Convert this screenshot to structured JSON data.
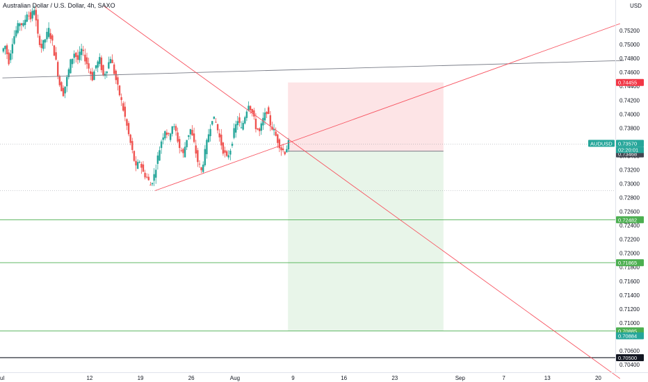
{
  "chart_data": {
    "type": "candlestick",
    "title": "Australian Dollar / U.S. Dollar, 4h, SAXO",
    "currency": "USD",
    "ylim": [
      0.703,
      0.756
    ],
    "y_ticks": [
      "0.75200",
      "0.75000",
      "0.74800",
      "0.74600",
      "0.74400",
      "0.74200",
      "0.74000",
      "0.73800",
      "0.73600",
      "0.73400",
      "0.73200",
      "0.73000",
      "0.72800",
      "0.72600",
      "0.72400",
      "0.72200",
      "0.72000",
      "0.71800",
      "0.71600",
      "0.71400",
      "0.71200",
      "0.71000",
      "0.70800",
      "0.70600",
      "0.70400"
    ],
    "x_ticks": [
      {
        "label": "ul",
        "day": 0
      },
      {
        "label": "12",
        "day": 12
      },
      {
        "label": "19",
        "day": 19
      },
      {
        "label": "26",
        "day": 26
      },
      {
        "label": "Aug",
        "day": 32
      },
      {
        "label": "9",
        "day": 40
      },
      {
        "label": "16",
        "day": 47
      },
      {
        "label": "23",
        "day": 54
      },
      {
        "label": "Sep",
        "day": 63
      },
      {
        "label": "7",
        "day": 69
      },
      {
        "label": "13",
        "day": 75
      },
      {
        "label": "20",
        "day": 82
      }
    ],
    "horizontal_levels": [
      {
        "price": 0.72482,
        "label": "0.72482",
        "color": "#4caf50"
      },
      {
        "price": 0.71865,
        "label": "0.71865",
        "color": "#4caf50"
      },
      {
        "price": 0.70885,
        "label": "0.70885",
        "color": "#4caf50"
      },
      {
        "price": 0.705,
        "label": "0.70500",
        "color": "#131722"
      }
    ],
    "price_tags": [
      {
        "price": 0.74455,
        "label": "0.74455",
        "color": "#f23645"
      },
      {
        "price": 0.7357,
        "label": "0.73570",
        "color": "#26a69a"
      },
      {
        "price": 0.73468,
        "label": "0.73468",
        "color": "#434651"
      },
      {
        "price": 0.70884,
        "label": "0.70884",
        "color": "#26a69a"
      }
    ],
    "symbol_tag": {
      "label": "AUDUSD",
      "countdown": "02:20:01",
      "price": 0.7357
    },
    "position": {
      "entry": 0.73468,
      "stop": 0.74455,
      "target": 0.70885,
      "start_day": 39.3,
      "end_day": 60.7
    },
    "trendlines": [
      {
        "from": {
          "day": 0,
          "price": 0.7452
        },
        "to": {
          "day": 85.5,
          "price": 0.7477
        },
        "color": "#787b86"
      },
      {
        "from": {
          "day": 14,
          "price": 0.7555
        },
        "to": {
          "day": 85,
          "price": 0.702
        },
        "color": "#f7525f"
      },
      {
        "from": {
          "day": 21,
          "price": 0.729
        },
        "to": {
          "day": 85,
          "price": 0.753
        },
        "color": "#f7525f"
      }
    ],
    "candles_ohlc_close_path": [
      {
        "day": 0.0,
        "close": 0.749
      },
      {
        "day": 0.5,
        "close": 0.7498
      },
      {
        "day": 1.0,
        "close": 0.7476
      },
      {
        "day": 1.5,
        "close": 0.7505
      },
      {
        "day": 2.0,
        "close": 0.752
      },
      {
        "day": 2.5,
        "close": 0.7532
      },
      {
        "day": 3.0,
        "close": 0.7527
      },
      {
        "day": 3.5,
        "close": 0.7546
      },
      {
        "day": 4.0,
        "close": 0.7538
      },
      {
        "day": 4.5,
        "close": 0.7552
      },
      {
        "day": 5.0,
        "close": 0.7512
      },
      {
        "day": 5.5,
        "close": 0.7496
      },
      {
        "day": 6.0,
        "close": 0.7508
      },
      {
        "day": 6.5,
        "close": 0.7521
      },
      {
        "day": 7.0,
        "close": 0.7502
      },
      {
        "day": 7.5,
        "close": 0.7475
      },
      {
        "day": 8.0,
        "close": 0.7443
      },
      {
        "day": 8.5,
        "close": 0.743
      },
      {
        "day": 9.0,
        "close": 0.7451
      },
      {
        "day": 9.5,
        "close": 0.7475
      },
      {
        "day": 10.0,
        "close": 0.7488
      },
      {
        "day": 10.5,
        "close": 0.7478
      },
      {
        "day": 11.0,
        "close": 0.7492
      },
      {
        "day": 11.5,
        "close": 0.748
      },
      {
        "day": 12.0,
        "close": 0.7466
      },
      {
        "day": 12.5,
        "close": 0.7452
      },
      {
        "day": 13.0,
        "close": 0.747
      },
      {
        "day": 13.5,
        "close": 0.7478
      },
      {
        "day": 14.0,
        "close": 0.7455
      },
      {
        "day": 14.5,
        "close": 0.7466
      },
      {
        "day": 15.0,
        "close": 0.7482
      },
      {
        "day": 15.5,
        "close": 0.746
      },
      {
        "day": 16.0,
        "close": 0.7438
      },
      {
        "day": 16.5,
        "close": 0.7418
      },
      {
        "day": 17.0,
        "close": 0.7395
      },
      {
        "day": 17.5,
        "close": 0.737
      },
      {
        "day": 18.0,
        "close": 0.7346
      },
      {
        "day": 18.5,
        "close": 0.7322
      },
      {
        "day": 19.0,
        "close": 0.7333
      },
      {
        "day": 19.5,
        "close": 0.7316
      },
      {
        "day": 20.0,
        "close": 0.7309
      },
      {
        "day": 20.5,
        "close": 0.7298
      },
      {
        "day": 21.0,
        "close": 0.7312
      },
      {
        "day": 21.5,
        "close": 0.7338
      },
      {
        "day": 22.0,
        "close": 0.7362
      },
      {
        "day": 22.5,
        "close": 0.7378
      },
      {
        "day": 23.0,
        "close": 0.7367
      },
      {
        "day": 23.5,
        "close": 0.7384
      },
      {
        "day": 24.0,
        "close": 0.7374
      },
      {
        "day": 24.5,
        "close": 0.7352
      },
      {
        "day": 25.0,
        "close": 0.7342
      },
      {
        "day": 25.5,
        "close": 0.7365
      },
      {
        "day": 26.0,
        "close": 0.7378
      },
      {
        "day": 26.5,
        "close": 0.7357
      },
      {
        "day": 27.0,
        "close": 0.7332
      },
      {
        "day": 27.5,
        "close": 0.7318
      },
      {
        "day": 28.0,
        "close": 0.7345
      },
      {
        "day": 28.5,
        "close": 0.7372
      },
      {
        "day": 29.0,
        "close": 0.7395
      },
      {
        "day": 29.5,
        "close": 0.7388
      },
      {
        "day": 30.0,
        "close": 0.7366
      },
      {
        "day": 30.5,
        "close": 0.7348
      },
      {
        "day": 31.0,
        "close": 0.7336
      },
      {
        "day": 31.5,
        "close": 0.735
      },
      {
        "day": 32.0,
        "close": 0.7375
      },
      {
        "day": 32.5,
        "close": 0.7392
      },
      {
        "day": 33.0,
        "close": 0.7378
      },
      {
        "day": 33.5,
        "close": 0.7398
      },
      {
        "day": 34.0,
        "close": 0.7416
      },
      {
        "day": 34.5,
        "close": 0.7402
      },
      {
        "day": 35.0,
        "close": 0.7382
      },
      {
        "day": 35.5,
        "close": 0.7374
      },
      {
        "day": 36.0,
        "close": 0.7392
      },
      {
        "day": 36.5,
        "close": 0.7405
      },
      {
        "day": 37.0,
        "close": 0.7386
      },
      {
        "day": 37.5,
        "close": 0.7375
      },
      {
        "day": 38.0,
        "close": 0.7362
      },
      {
        "day": 38.5,
        "close": 0.735
      },
      {
        "day": 39.0,
        "close": 0.7346
      },
      {
        "day": 39.5,
        "close": 0.7358
      }
    ]
  }
}
